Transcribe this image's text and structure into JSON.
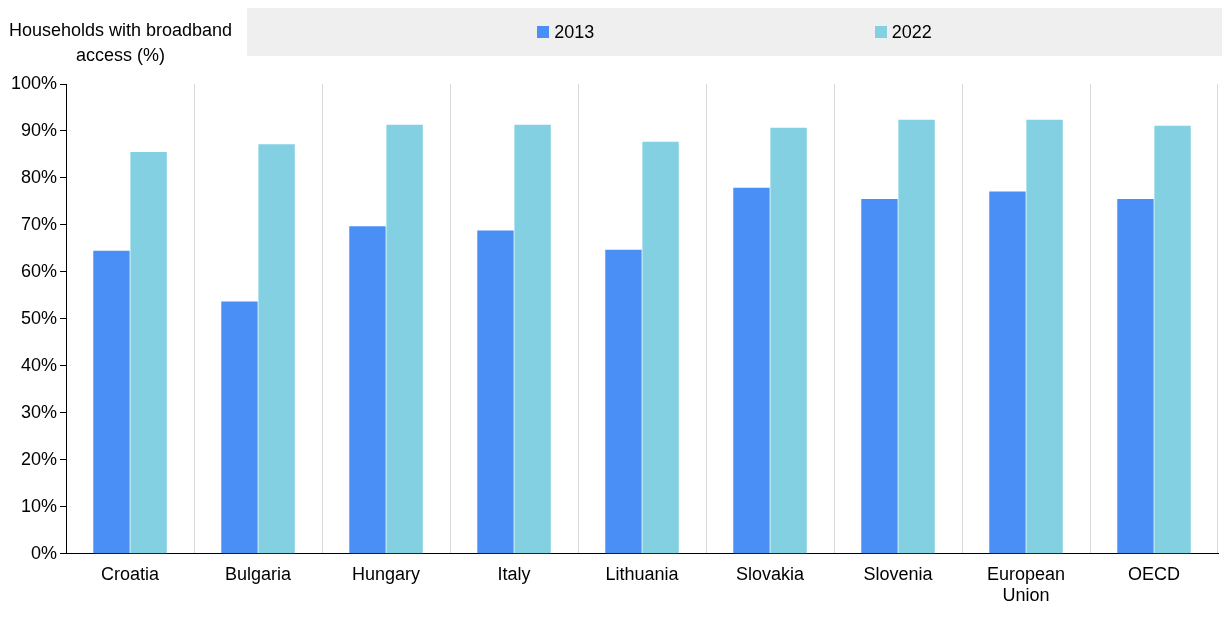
{
  "chart_data": {
    "type": "bar",
    "ylabel": "Households with broadband access (%)",
    "categories": [
      "Croatia",
      "Bulgaria",
      "Hungary",
      "Italy",
      "Lithuania",
      "Slovakia",
      "Slovenia",
      "European Union",
      "OECD"
    ],
    "series": [
      {
        "name": "2013",
        "color": "#4a8ff5",
        "values": [
          64.5,
          53.7,
          69.7,
          68.8,
          64.7,
          77.9,
          75.5,
          77.1,
          75.5
        ]
      },
      {
        "name": "2022",
        "color": "#83d0e3",
        "values": [
          85.5,
          87.2,
          91.3,
          91.3,
          87.7,
          90.7,
          92.4,
          92.4,
          91.1
        ]
      }
    ],
    "ylim": [
      0,
      100
    ],
    "yticks": [
      {
        "value": 0,
        "label": "0%"
      },
      {
        "value": 10,
        "label": "10%"
      },
      {
        "value": 20,
        "label": "20%"
      },
      {
        "value": 30,
        "label": "30%"
      },
      {
        "value": 40,
        "label": "40%"
      },
      {
        "value": 50,
        "label": "50%"
      },
      {
        "value": 60,
        "label": "60%"
      },
      {
        "value": 70,
        "label": "70%"
      },
      {
        "value": 80,
        "label": "80%"
      },
      {
        "value": 90,
        "label": "90%"
      },
      {
        "value": 100,
        "label": "100%"
      }
    ],
    "grid": "x",
    "legend": "top"
  }
}
